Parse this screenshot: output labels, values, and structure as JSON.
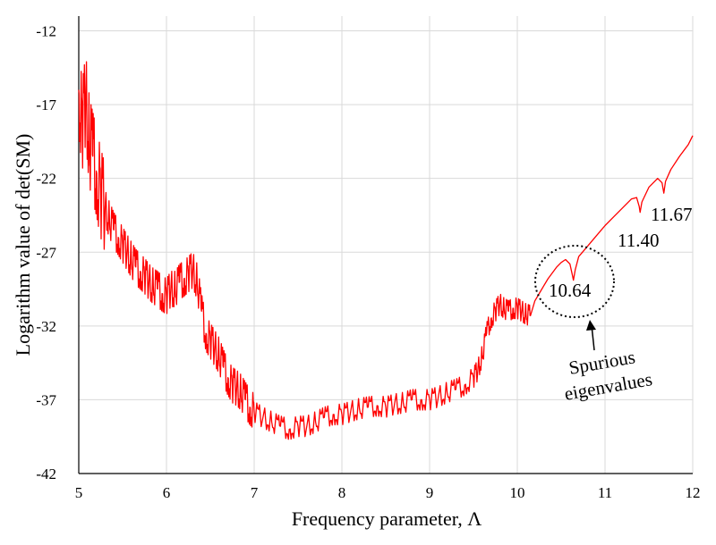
{
  "chart_data": {
    "type": "line",
    "title": "",
    "xlabel": "Frequency parameter, Λ",
    "ylabel": "Logarithm value of  det(SM)",
    "xlim": [
      5,
      12
    ],
    "ylim": [
      -42,
      -11
    ],
    "x_ticks": [
      5,
      6,
      7,
      8,
      9,
      10,
      11,
      12
    ],
    "y_ticks": [
      -12,
      -17,
      -22,
      -27,
      -32,
      -37,
      -42
    ],
    "grid": true,
    "legend": "none",
    "series": [
      {
        "color": "#ff0000",
        "x": [
          5.0,
          5.04,
          5.08,
          5.12,
          5.16,
          5.2,
          5.25,
          5.3,
          5.35,
          5.4,
          5.45,
          5.5,
          5.55,
          5.6,
          5.65,
          5.7,
          5.75,
          5.8,
          5.85,
          5.9,
          5.95,
          6.0,
          6.05,
          6.1,
          6.15,
          6.2,
          6.25,
          6.3,
          6.35,
          6.4,
          6.45,
          6.5,
          6.55,
          6.6,
          6.65,
          6.7,
          6.75,
          6.8,
          6.85,
          6.9,
          6.95,
          7.0,
          7.1,
          7.2,
          7.3,
          7.4,
          7.5,
          7.6,
          7.7,
          7.8,
          7.9,
          8.0,
          8.1,
          8.2,
          8.3,
          8.4,
          8.5,
          8.6,
          8.7,
          8.8,
          8.9,
          9.0,
          9.1,
          9.2,
          9.3,
          9.4,
          9.5,
          9.55,
          9.6,
          9.65,
          9.7,
          9.75,
          9.8,
          9.85,
          9.9,
          9.95,
          10.0,
          10.05,
          10.1,
          10.15,
          10.2,
          10.25,
          10.3,
          10.35,
          10.4,
          10.45,
          10.5,
          10.55,
          10.6,
          10.63,
          10.64,
          10.66,
          10.7,
          10.8,
          10.9,
          11.0,
          11.1,
          11.2,
          11.3,
          11.36,
          11.39,
          11.4,
          11.42,
          11.5,
          11.6,
          11.65,
          11.67,
          11.69,
          11.75,
          11.85,
          11.95,
          12.0
        ],
        "y": [
          -16.0,
          -18.5,
          -16.5,
          -19.5,
          -20.5,
          -21.5,
          -23.0,
          -24.0,
          -24.8,
          -25.5,
          -26.0,
          -26.5,
          -27.0,
          -27.5,
          -28.0,
          -28.3,
          -28.6,
          -29.0,
          -29.3,
          -29.5,
          -29.8,
          -30.0,
          -29.5,
          -29.5,
          -29.0,
          -28.8,
          -28.5,
          -28.2,
          -29.0,
          -31.0,
          -32.5,
          -33.0,
          -33.5,
          -34.0,
          -34.8,
          -35.5,
          -36.0,
          -36.2,
          -36.5,
          -37.0,
          -37.5,
          -37.8,
          -38.2,
          -38.5,
          -38.8,
          -39.0,
          -38.8,
          -38.8,
          -38.5,
          -38.2,
          -38.0,
          -38.0,
          -37.8,
          -37.6,
          -37.5,
          -37.4,
          -37.5,
          -37.3,
          -37.2,
          -37.0,
          -37.0,
          -37.0,
          -36.8,
          -36.5,
          -36.3,
          -36.0,
          -35.5,
          -35.0,
          -34.0,
          -32.5,
          -31.5,
          -31.0,
          -30.5,
          -30.8,
          -31.0,
          -30.8,
          -30.8,
          -31.0,
          -31.2,
          -31.3,
          -30.3,
          -29.8,
          -29.3,
          -28.8,
          -28.4,
          -28.0,
          -27.7,
          -27.5,
          -27.8,
          -28.6,
          -28.9,
          -28.2,
          -27.3,
          -26.6,
          -25.9,
          -25.2,
          -24.6,
          -24.0,
          -23.4,
          -23.3,
          -23.9,
          -24.3,
          -23.6,
          -22.6,
          -22.0,
          -22.3,
          -23.0,
          -22.2,
          -21.4,
          -20.5,
          -19.7,
          -19.1
        ]
      }
    ],
    "annotations": {
      "label_1164": "11.67",
      "label_1140": "11.40",
      "label_1064": "10.64",
      "spurious_line1": "Spurious",
      "spurious_line2": "eigenvalues"
    }
  }
}
